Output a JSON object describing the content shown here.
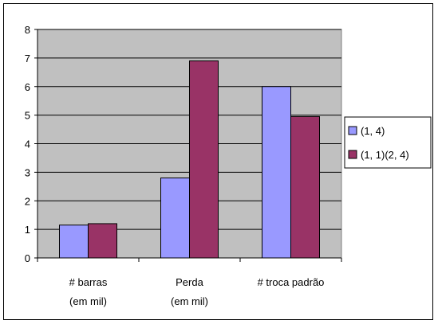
{
  "chart_data": {
    "type": "bar",
    "categories": [
      [
        "# barras",
        "(em mil)"
      ],
      [
        "Perda",
        "(em mil)"
      ],
      [
        "# troca padrão"
      ]
    ],
    "series": [
      {
        "name": "(1,  4)",
        "values": [
          1.15,
          2.8,
          6.0
        ],
        "color": "#9999ff"
      },
      {
        "name": "(1,  1)(2,  4)",
        "values": [
          1.2,
          6.9,
          4.95
        ],
        "color": "#993366"
      }
    ],
    "ylim": [
      0,
      8
    ],
    "yticks": [
      0,
      1,
      2,
      3,
      4,
      5,
      6,
      7,
      8
    ],
    "grid": true,
    "plot_background": "#c0c0c0",
    "legend_position": "right",
    "title": "",
    "xlabel": "",
    "ylabel": ""
  }
}
